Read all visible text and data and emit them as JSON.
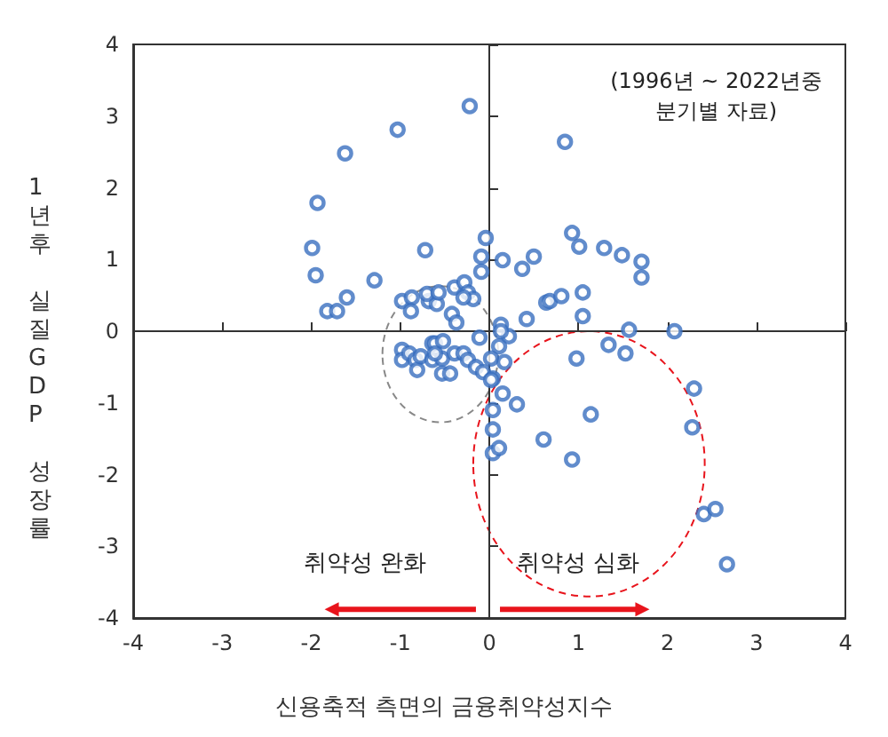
{
  "chart_data": {
    "type": "scatter",
    "xlabel": "신용축적 측면의 금융취약성지수",
    "ylabel": "1년후 실질GDP 성장률",
    "xlim": [
      -4,
      4
    ],
    "ylim": [
      -4,
      4
    ],
    "xticks": [
      -4,
      -3,
      -2,
      -1,
      0,
      1,
      2,
      3,
      4
    ],
    "yticks": [
      -4,
      -3,
      -2,
      -1,
      0,
      1,
      2,
      3,
      4
    ],
    "marker": "circle",
    "annotations": [
      "(1996년 ~ 2022년중\n분기별 자료)",
      "취약성 완화",
      "취약성 심화"
    ],
    "series": [
      {
        "color": "#3a6fbf",
        "x": [
          -0.22,
          -1.03,
          -1.62,
          -1.93,
          -1.99,
          -1.95,
          -1.82,
          -1.71,
          -1.6,
          -1.29,
          -0.72,
          -0.04,
          -0.09,
          -0.39,
          -0.28,
          -0.24,
          -0.18,
          -0.29,
          -0.42,
          -0.37,
          -0.98,
          -0.87,
          -0.88,
          -0.68,
          -0.59,
          -0.7,
          -0.57,
          -0.11,
          -0.98,
          -0.98,
          -0.9,
          -0.83,
          -0.81,
          -0.77,
          -0.64,
          -0.61,
          -0.52,
          -0.64,
          -0.53,
          -0.53,
          -0.44,
          -0.39,
          -0.29,
          -0.24,
          -0.15,
          -0.07,
          -0.61,
          0.85,
          0.93,
          1.01,
          1.29,
          1.49,
          1.71,
          1.71,
          -0.09,
          0.15,
          0.37,
          0.5,
          0.64,
          0.68,
          0.81,
          1.05,
          1.05,
          0.42,
          0.13,
          0.22,
          2.08,
          1.57,
          0.13,
          0.02,
          0.11,
          0.17,
          0.04,
          0.15,
          0.31,
          0.04,
          0.04,
          0.04,
          0.11,
          0.61,
          0.93,
          1.14,
          0.98,
          1.34,
          1.53,
          2.3,
          2.28,
          2.41,
          2.54,
          2.67,
          0.02
        ],
        "values": [
          3.14,
          2.81,
          2.48,
          1.79,
          1.16,
          0.78,
          0.28,
          0.28,
          0.47,
          0.71,
          1.13,
          1.3,
          1.04,
          0.61,
          0.68,
          0.54,
          0.45,
          0.47,
          0.24,
          0.12,
          0.42,
          0.47,
          0.28,
          0.42,
          0.38,
          0.52,
          0.54,
          -0.09,
          -0.26,
          -0.4,
          -0.31,
          -0.4,
          -0.54,
          -0.35,
          -0.17,
          -0.17,
          -0.14,
          -0.4,
          -0.38,
          -0.59,
          -0.59,
          -0.31,
          -0.31,
          -0.4,
          -0.5,
          -0.57,
          -0.31,
          2.64,
          1.37,
          1.18,
          1.16,
          1.06,
          0.97,
          0.75,
          0.83,
          0.99,
          0.87,
          1.04,
          0.4,
          0.42,
          0.49,
          0.54,
          0.21,
          0.17,
          0.09,
          -0.07,
          0,
          0.02,
          0,
          -0.38,
          -0.21,
          -0.43,
          -0.66,
          -0.87,
          -1.02,
          -1.1,
          -1.37,
          -1.7,
          -1.63,
          -1.51,
          -1.79,
          -1.16,
          -0.38,
          -0.19,
          -0.31,
          -0.8,
          -1.34,
          -2.55,
          -2.48,
          -3.25,
          -0.68
        ]
      }
    ]
  }
}
